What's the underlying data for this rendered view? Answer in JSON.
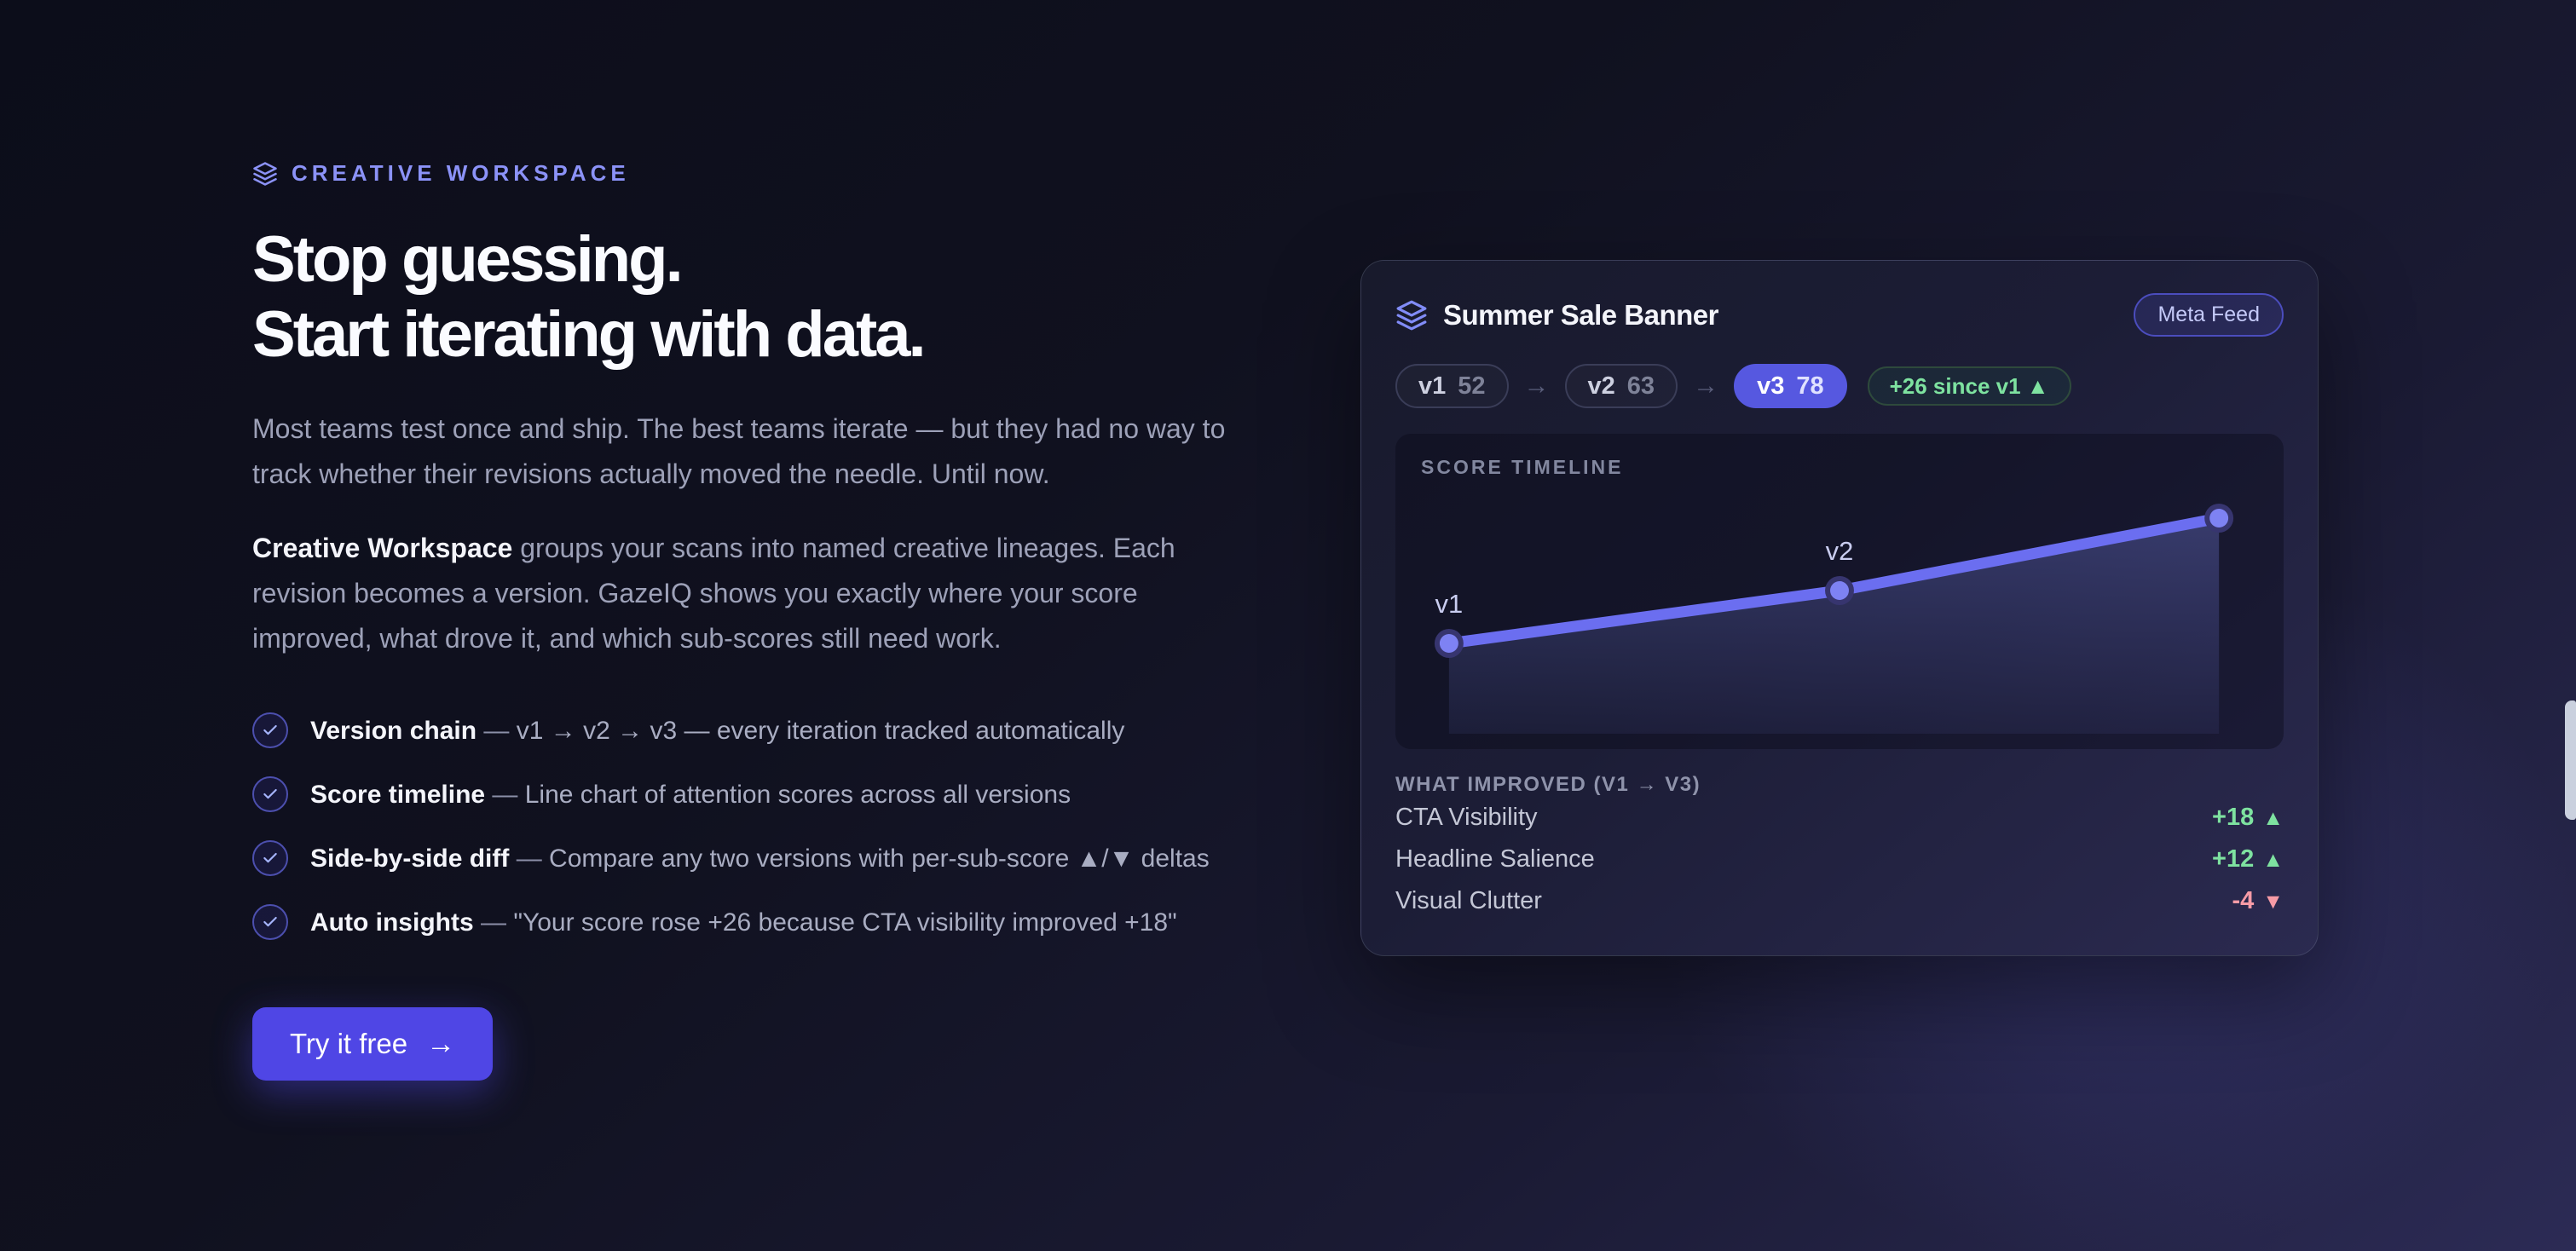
{
  "colors": {
    "accent": "#5658e0",
    "accent_light": "#818cf8",
    "positive": "#7ee2a0",
    "negative": "#f79ba6",
    "cta_bg": "#4f46e5"
  },
  "hero": {
    "eyebrow_label": "CREATIVE WORKSPACE",
    "eyebrow_icon": "layers-icon",
    "heading_line1": "Stop guessing.",
    "heading_line2": "Start iterating with data.",
    "para1": "Most teams test once and ship. The best teams iterate — but they had no way to track whether their revisions actually moved the needle. Until now.",
    "para2_bold": "Creative Workspace",
    "para2_rest": " groups your scans into named creative lineages. Each revision becomes a version. GazeIQ shows you exactly where your score improved, what drove it, and which sub-scores still need work.",
    "feature_separator": " — ",
    "features": [
      {
        "title": "Version chain",
        "desc": "v1 → v2 → v3 — every iteration tracked automatically"
      },
      {
        "title": "Score timeline",
        "desc": "Line chart of attention scores across all versions"
      },
      {
        "title": "Side-by-side diff",
        "desc": "Compare any two versions with per-sub-score ▲/▼ deltas"
      },
      {
        "title": "Auto insights",
        "desc": "\"Your score rose +26 because CTA visibility improved +18\""
      }
    ],
    "cta": {
      "label": "Try it free",
      "arrow": "→"
    }
  },
  "card": {
    "icon": "layers-icon",
    "title": "Summer Sale Banner",
    "feed_badge": "Meta Feed",
    "chain_arrow": "→",
    "versions": [
      {
        "name": "v1",
        "score": "52",
        "active": false
      },
      {
        "name": "v2",
        "score": "63",
        "active": false
      },
      {
        "name": "v3",
        "score": "78",
        "active": true
      }
    ],
    "delta_badge": "+26 since v1 ▲",
    "improved": {
      "header": "WHAT IMPROVED (V1 → V3)",
      "up_glyph": "▲",
      "down_glyph": "▼",
      "rows": [
        {
          "label": "CTA Visibility",
          "delta": "+18",
          "dir": "up"
        },
        {
          "label": "Headline Salience",
          "delta": "+12",
          "dir": "down-no",
          "direction": "up"
        },
        {
          "label": "Visual Clutter",
          "delta": "-4",
          "direction": "down"
        }
      ]
    }
  },
  "chart_data": {
    "type": "line",
    "title": "SCORE TIMELINE",
    "categories": [
      "v1",
      "v2",
      "v3"
    ],
    "values": [
      52,
      63,
      78
    ],
    "visible_point_labels": [
      "v1",
      "v2"
    ],
    "ylim": [
      45,
      85
    ],
    "grid": false,
    "legend": false,
    "line_color": "#6b6ef0",
    "area_fill": "rgba(129,140,248,0.28)"
  }
}
